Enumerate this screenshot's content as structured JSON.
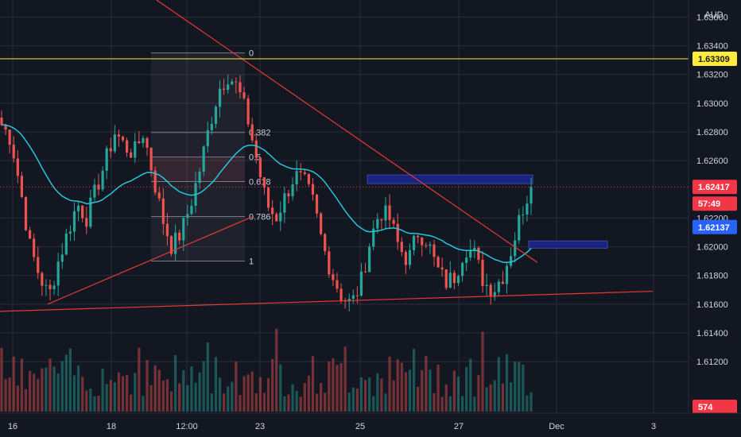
{
  "chart_data": {
    "type": "candlestick",
    "currency": "AUD",
    "price_axis": {
      "range": [
        1.6104,
        1.6368
      ],
      "ticks": [
        "1.63600",
        "1.63400",
        "1.63200",
        "1.63000",
        "1.62800",
        "1.62600",
        "1.62200",
        "1.62000",
        "1.61800",
        "1.61600",
        "1.61400",
        "1.61200"
      ]
    },
    "time_axis": {
      "ticks": [
        "16",
        "18",
        "12:00",
        "23",
        "25",
        "27",
        "Dec",
        "3"
      ]
    },
    "price_tags": [
      {
        "name": "horizontal-line",
        "value": "1.63309",
        "bg": "#ffeb3b",
        "fg": "#131722"
      },
      {
        "name": "last-price",
        "value": "1.62417",
        "bg": "#f23645",
        "fg": "#ffffff"
      },
      {
        "name": "countdown",
        "value": "57:49",
        "bg": "#f23645",
        "fg": "#ffffff"
      },
      {
        "name": "moving-average",
        "value": "1.62137",
        "bg": "#2962ff",
        "fg": "#ffffff"
      },
      {
        "name": "volume",
        "value": "574",
        "bg": "#f23645",
        "fg": "#ffffff"
      }
    ],
    "fibonacci": {
      "high": 1.6335,
      "low": 1.619,
      "levels": [
        "0",
        "0.382",
        "0.5",
        "0.618",
        "0.786",
        "1"
      ]
    },
    "trendlines": [
      {
        "name": "descending-resistance",
        "from": [
          "x0",
          1.6372
        ],
        "to": [
          "dec-1",
          1.6189
        ]
      },
      {
        "name": "ascending-support",
        "from": [
          "day-17",
          1.616
        ],
        "to": [
          "day-22",
          1.6221
        ]
      },
      {
        "name": "lower-support",
        "from": [
          "start",
          1.6155
        ],
        "to": [
          "dec-2",
          1.6169
        ]
      }
    ],
    "zones": [
      {
        "name": "supply-zone",
        "top": 1.625,
        "bottom": 1.6244
      },
      {
        "name": "demand-zone",
        "top": 1.6204,
        "bottom": 1.6199
      }
    ],
    "series": [
      {
        "name": "ohlc",
        "close": [
          1.6285,
          1.6275,
          1.624,
          1.62,
          1.618,
          1.6165,
          1.619,
          1.621,
          1.623,
          1.622,
          1.624,
          1.626,
          1.628,
          1.627,
          1.6265,
          1.628,
          1.625,
          1.622,
          1.62,
          1.621,
          1.623,
          1.6255,
          1.6285,
          1.631,
          1.632,
          1.631,
          1.629,
          1.626,
          1.623,
          1.622,
          1.6235,
          1.625,
          1.6245,
          1.623,
          1.62,
          1.618,
          1.6165,
          1.616,
          1.6175,
          1.6205,
          1.6225,
          1.622,
          1.62,
          1.619,
          1.621,
          1.6205,
          1.6185,
          1.6175,
          1.618,
          1.62,
          1.6195,
          1.6175,
          1.617,
          1.618,
          1.62,
          1.6225,
          1.6242
        ]
      },
      {
        "name": "moving-average",
        "color": "#26c6da"
      }
    ],
    "colors": {
      "up": "#26a69a",
      "down": "#ef5350",
      "background": "#131722",
      "grid": "#2a2e39",
      "trendline": "#e53935",
      "zone": "#1a237e",
      "hline": "#ffeb3b"
    }
  }
}
